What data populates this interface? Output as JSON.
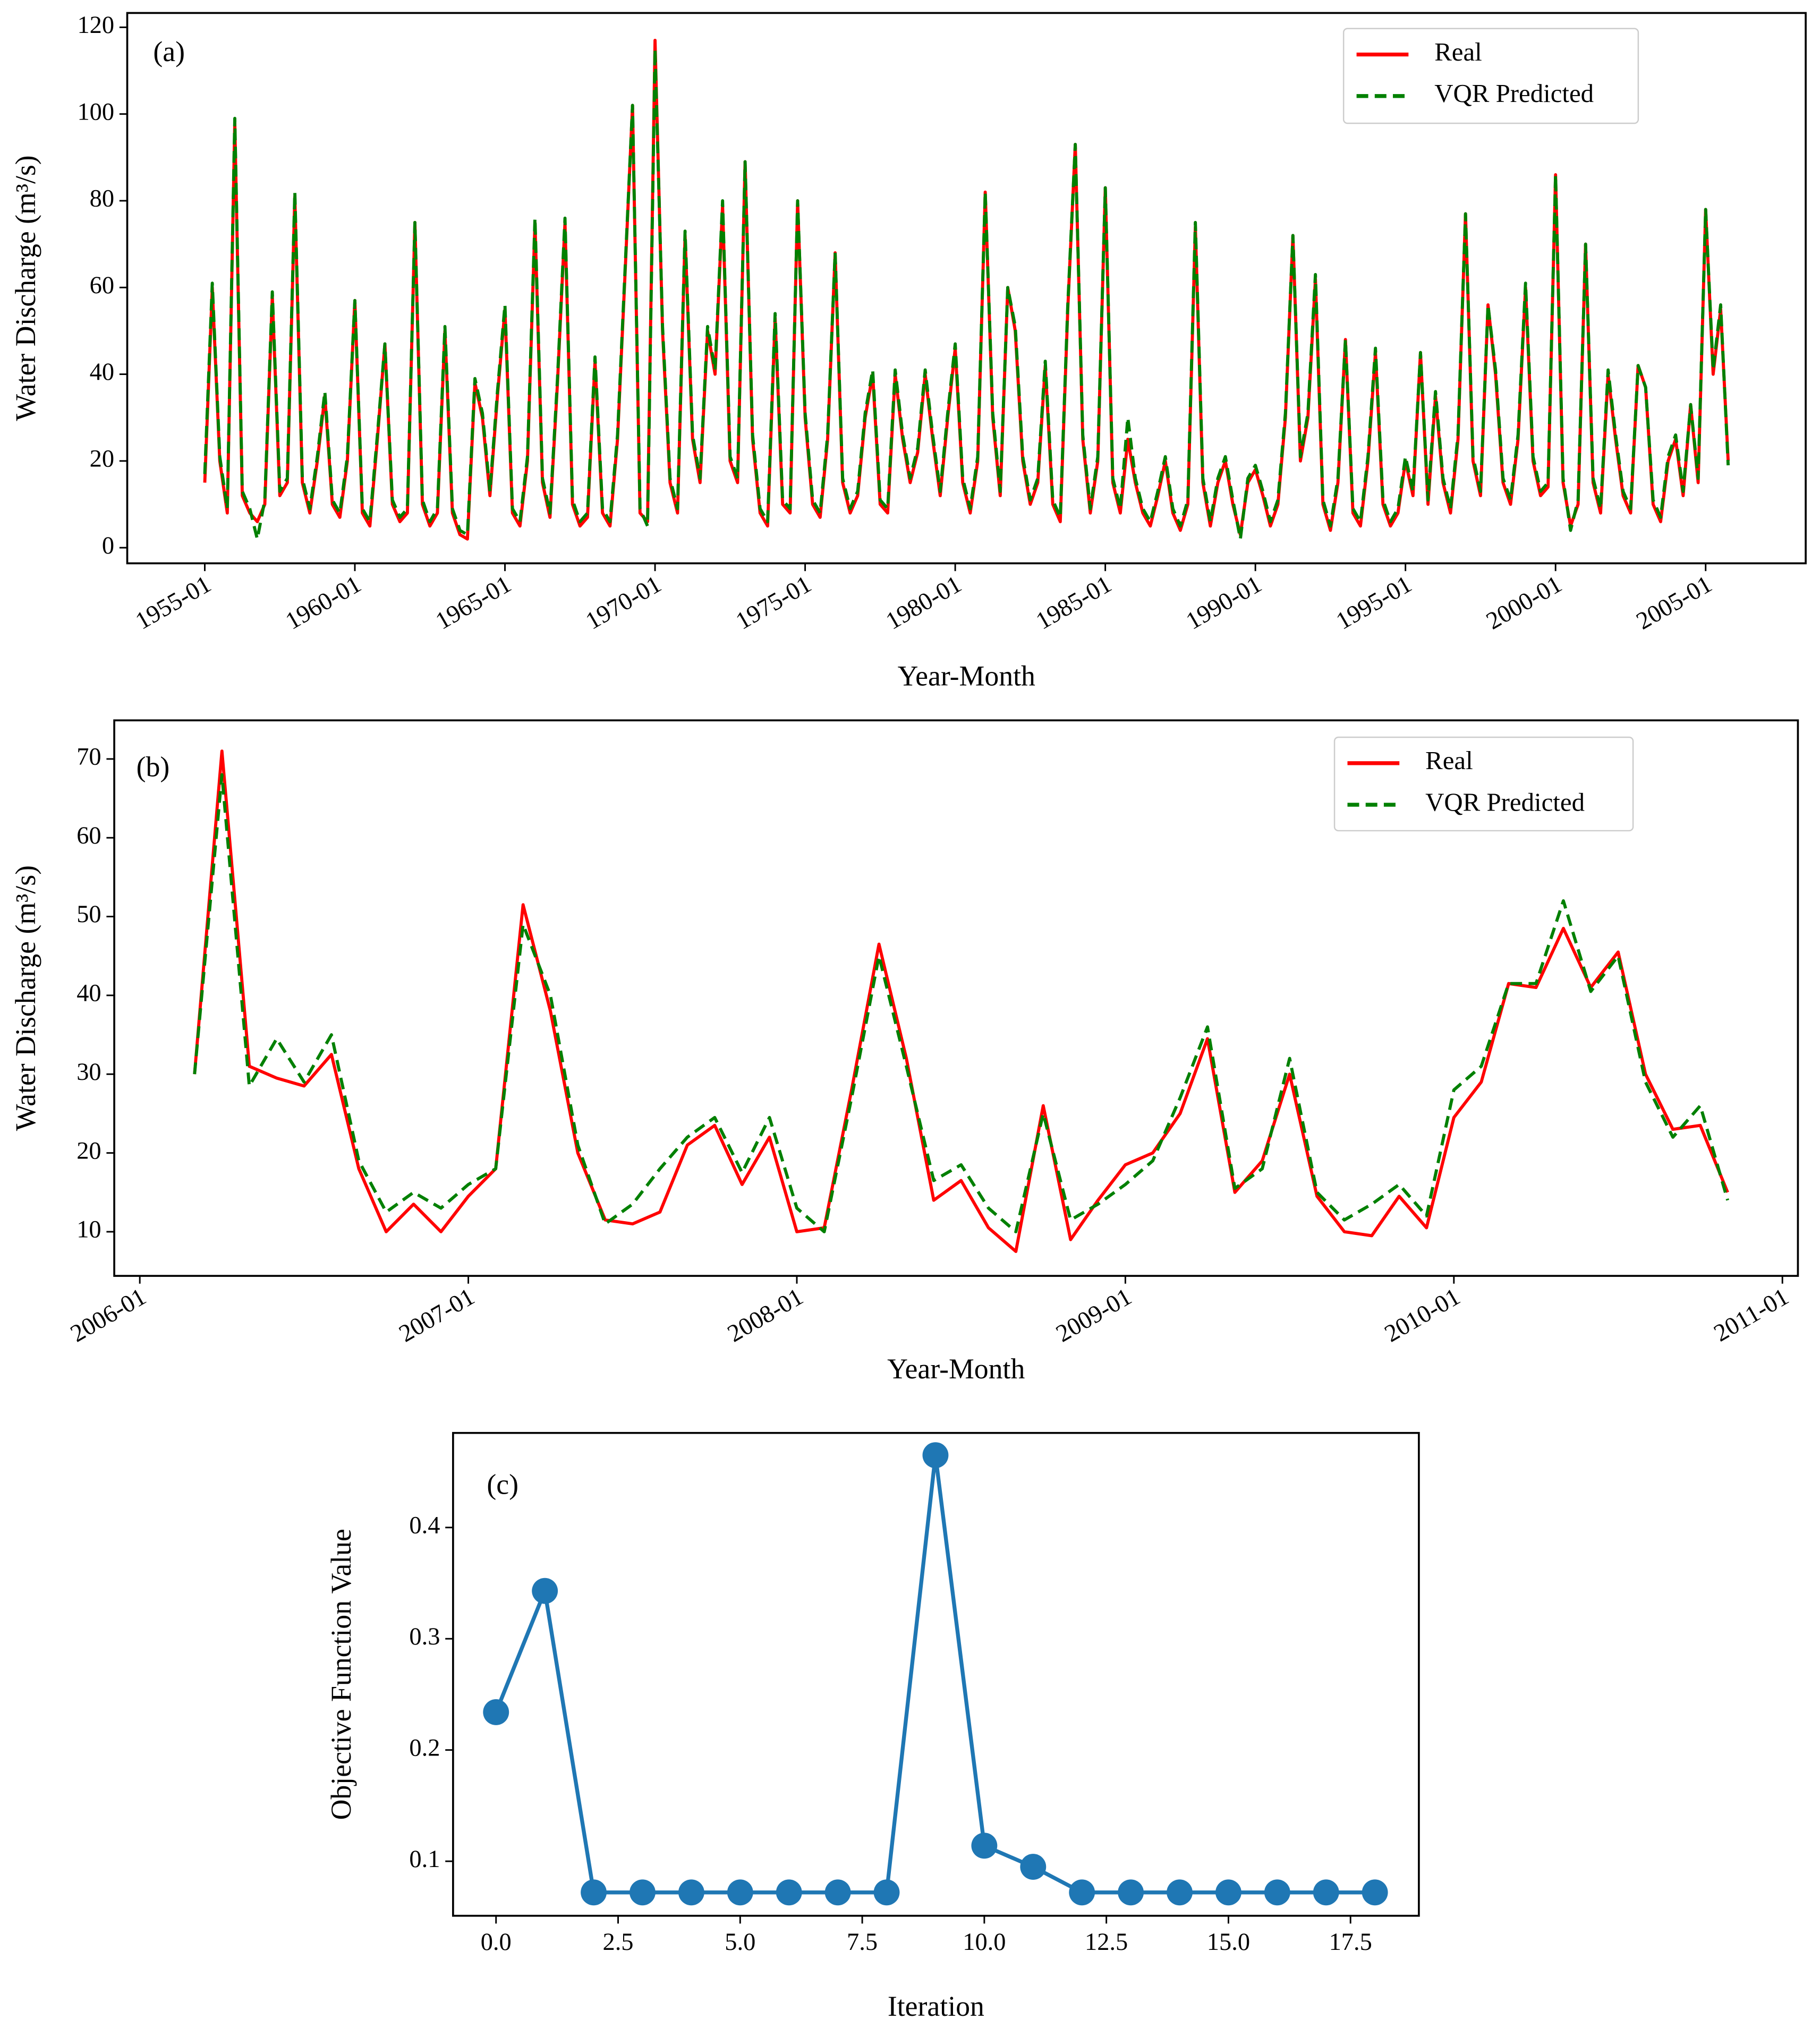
{
  "chart_data": [
    {
      "type": "line",
      "annotation": "(a)",
      "xlabel": "Year-Month",
      "ylabel": "Water Discharge (m³/s)",
      "legend": "upper right",
      "x": [
        "1955-01",
        "1955-04",
        "1955-07",
        "1955-10",
        "1956-01",
        "1956-04",
        "1956-07",
        "1956-10",
        "1957-01",
        "1957-04",
        "1957-07",
        "1957-10",
        "1958-01",
        "1958-04",
        "1958-07",
        "1958-10",
        "1959-01",
        "1959-04",
        "1959-07",
        "1959-10",
        "1960-01",
        "1960-04",
        "1960-07",
        "1960-10",
        "1961-01",
        "1961-04",
        "1961-07",
        "1961-10",
        "1962-01",
        "1962-04",
        "1962-07",
        "1962-10",
        "1963-01",
        "1963-04",
        "1963-07",
        "1963-10",
        "1964-01",
        "1964-04",
        "1964-07",
        "1964-10",
        "1965-01",
        "1965-04",
        "1965-07",
        "1965-10",
        "1966-01",
        "1966-04",
        "1966-07",
        "1966-10",
        "1967-01",
        "1967-04",
        "1967-07",
        "1967-10",
        "1968-01",
        "1968-04",
        "1968-07",
        "1968-10",
        "1969-01",
        "1969-04",
        "1969-07",
        "1969-10",
        "1970-01",
        "1970-04",
        "1970-07",
        "1970-10",
        "1971-01",
        "1971-04",
        "1971-07",
        "1971-10",
        "1972-01",
        "1972-04",
        "1972-07",
        "1972-10",
        "1973-01",
        "1973-04",
        "1973-07",
        "1973-10",
        "1974-01",
        "1974-04",
        "1974-07",
        "1974-10",
        "1975-01",
        "1975-04",
        "1975-07",
        "1975-10",
        "1976-01",
        "1976-04",
        "1976-07",
        "1976-10",
        "1977-01",
        "1977-04",
        "1977-07",
        "1977-10",
        "1978-01",
        "1978-04",
        "1978-07",
        "1978-10",
        "1979-01",
        "1979-04",
        "1979-07",
        "1979-10",
        "1980-01",
        "1980-04",
        "1980-07",
        "1980-10",
        "1981-01",
        "1981-04",
        "1981-07",
        "1981-10",
        "1982-01",
        "1982-04",
        "1982-07",
        "1982-10",
        "1983-01",
        "1983-04",
        "1983-07",
        "1983-10",
        "1984-01",
        "1984-04",
        "1984-07",
        "1984-10",
        "1985-01",
        "1985-04",
        "1985-07",
        "1985-10",
        "1986-01",
        "1986-04",
        "1986-07",
        "1986-10",
        "1987-01",
        "1987-04",
        "1987-07",
        "1987-10",
        "1988-01",
        "1988-04",
        "1988-07",
        "1988-10",
        "1989-01",
        "1989-04",
        "1989-07",
        "1989-10",
        "1990-01",
        "1990-04",
        "1990-07",
        "1990-10",
        "1991-01",
        "1991-04",
        "1991-07",
        "1991-10",
        "1992-01",
        "1992-04",
        "1992-07",
        "1992-10",
        "1993-01",
        "1993-04",
        "1993-07",
        "1993-10",
        "1994-01",
        "1994-04",
        "1994-07",
        "1994-10",
        "1995-01",
        "1995-04",
        "1995-07",
        "1995-10",
        "1996-01",
        "1996-04",
        "1996-07",
        "1996-10",
        "1997-01",
        "1997-04",
        "1997-07",
        "1997-10",
        "1998-01",
        "1998-04",
        "1998-07",
        "1998-10",
        "1999-01",
        "1999-04",
        "1999-07",
        "1999-10",
        "2000-01",
        "2000-04",
        "2000-07",
        "2000-10",
        "2001-01",
        "2001-04",
        "2001-07",
        "2001-10",
        "2002-01",
        "2002-04",
        "2002-07",
        "2002-10",
        "2003-01",
        "2003-04",
        "2003-07",
        "2003-10",
        "2004-01",
        "2004-04",
        "2004-07",
        "2004-10",
        "2005-01",
        "2005-04",
        "2005-07",
        "2005-10"
      ],
      "series": [
        {
          "name": "Real",
          "color": "#ff0000",
          "dash": false,
          "values": [
            15,
            60,
            20,
            8,
            98,
            12,
            8,
            6,
            10,
            58,
            12,
            15,
            81,
            15,
            8,
            20,
            35,
            10,
            7,
            20,
            57,
            8,
            5,
            25,
            47,
            10,
            6,
            8,
            75,
            10,
            5,
            8,
            50,
            8,
            3,
            2,
            38,
            30,
            12,
            35,
            55,
            8,
            5,
            20,
            75,
            15,
            7,
            38,
            75,
            10,
            5,
            7,
            43,
            8,
            5,
            25,
            63,
            102,
            8,
            6,
            117,
            50,
            15,
            8,
            72,
            25,
            15,
            50,
            40,
            79,
            20,
            15,
            89,
            25,
            8,
            5,
            53,
            10,
            8,
            80,
            30,
            10,
            7,
            25,
            68,
            15,
            8,
            12,
            30,
            40,
            10,
            8,
            40,
            25,
            15,
            22,
            40,
            25,
            12,
            30,
            46,
            15,
            8,
            20,
            82,
            30,
            12,
            60,
            50,
            20,
            10,
            15,
            42,
            10,
            6,
            55,
            93,
            25,
            8,
            20,
            83,
            15,
            8,
            25,
            15,
            8,
            5,
            12,
            20,
            8,
            4,
            10,
            74,
            15,
            5,
            15,
            20,
            10,
            3,
            15,
            18,
            12,
            5,
            10,
            30,
            72,
            20,
            30,
            62,
            10,
            4,
            15,
            48,
            8,
            5,
            20,
            45,
            10,
            5,
            8,
            20,
            12,
            45,
            10,
            35,
            15,
            8,
            25,
            77,
            20,
            12,
            56,
            40,
            15,
            10,
            25,
            60,
            20,
            12,
            14,
            86,
            15,
            5,
            10,
            70,
            15,
            8,
            40,
            25,
            12,
            8,
            42,
            37,
            10,
            6,
            20,
            25,
            12,
            33,
            15,
            78,
            40,
            55,
            20
          ]
        },
        {
          "name": "VQR Predicted",
          "color": "#008000",
          "dash": true,
          "values": [
            17,
            61,
            21,
            9,
            99,
            13,
            9,
            2,
            11,
            59,
            13,
            16,
            82,
            16,
            9,
            21,
            36,
            11,
            8,
            21,
            57,
            9,
            6,
            26,
            47,
            11,
            7,
            9,
            75,
            11,
            6,
            9,
            51,
            9,
            4,
            3,
            39,
            31,
            13,
            36,
            56,
            9,
            6,
            21,
            76,
            16,
            8,
            39,
            76,
            11,
            6,
            8,
            44,
            9,
            6,
            26,
            64,
            102,
            9,
            5,
            115,
            51,
            16,
            9,
            73,
            26,
            16,
            51,
            41,
            80,
            21,
            16,
            89,
            26,
            9,
            6,
            54,
            11,
            9,
            80,
            31,
            11,
            8,
            26,
            68,
            16,
            9,
            13,
            31,
            41,
            11,
            9,
            41,
            26,
            16,
            23,
            41,
            26,
            13,
            31,
            47,
            16,
            9,
            21,
            82,
            31,
            13,
            60,
            51,
            21,
            11,
            16,
            43,
            11,
            7,
            56,
            93,
            26,
            9,
            21,
            83,
            16,
            9,
            30,
            16,
            9,
            6,
            13,
            21,
            9,
            5,
            11,
            75,
            16,
            6,
            16,
            21,
            11,
            2,
            16,
            19,
            13,
            6,
            11,
            31,
            72,
            21,
            31,
            63,
            11,
            5,
            16,
            48,
            9,
            6,
            21,
            46,
            11,
            6,
            9,
            21,
            13,
            45,
            11,
            36,
            16,
            9,
            26,
            77,
            21,
            13,
            56,
            41,
            16,
            11,
            26,
            61,
            21,
            13,
            15,
            86,
            16,
            4,
            11,
            70,
            16,
            9,
            41,
            26,
            13,
            9,
            42,
            37,
            11,
            7,
            21,
            26,
            13,
            33,
            16,
            78,
            41,
            56,
            19
          ]
        }
      ],
      "xlim": [
        "1952-06",
        "2008-05"
      ],
      "xticks": [
        "1955-01",
        "1960-01",
        "1965-01",
        "1970-01",
        "1975-01",
        "1980-01",
        "1985-01",
        "1990-01",
        "1995-01",
        "2000-01",
        "2005-01"
      ],
      "ylim": [
        -3.6,
        123.3
      ],
      "yticks": [
        0,
        20,
        40,
        60,
        80,
        100,
        120
      ]
    },
    {
      "type": "line",
      "annotation": "(b)",
      "xlabel": "Year-Month",
      "ylabel": "Water Discharge (m³/s)",
      "legend": "upper right",
      "x": [
        "2006-03",
        "2006-04",
        "2006-05",
        "2006-06",
        "2006-07",
        "2006-08",
        "2006-09",
        "2006-10",
        "2006-11",
        "2006-12",
        "2007-01",
        "2007-02",
        "2007-03",
        "2007-04",
        "2007-05",
        "2007-06",
        "2007-07",
        "2007-08",
        "2007-09",
        "2007-10",
        "2007-11",
        "2007-12",
        "2008-01",
        "2008-02",
        "2008-03",
        "2008-04",
        "2008-05",
        "2008-06",
        "2008-07",
        "2008-08",
        "2008-09",
        "2008-10",
        "2008-11",
        "2008-12",
        "2009-01",
        "2009-02",
        "2009-03",
        "2009-04",
        "2009-05",
        "2009-06",
        "2009-07",
        "2009-08",
        "2009-09",
        "2009-10",
        "2009-11",
        "2009-12",
        "2010-01",
        "2010-02",
        "2010-03",
        "2010-04",
        "2010-05",
        "2010-06",
        "2010-07",
        "2010-08",
        "2010-09",
        "2010-10",
        "2010-11"
      ],
      "series": [
        {
          "name": "Real",
          "color": "#ff0000",
          "dash": false,
          "values": [
            30,
            71,
            31,
            29.5,
            28.5,
            32.5,
            18,
            10,
            13.5,
            10,
            14.5,
            18,
            51.5,
            38,
            20,
            11.5,
            11,
            12.5,
            21,
            23.5,
            16,
            22,
            10,
            10.5,
            28,
            46.5,
            32,
            14,
            16.5,
            10.5,
            7.5,
            26,
            9,
            14,
            18.5,
            20,
            25,
            34.5,
            15,
            19,
            30,
            14.5,
            10,
            9.5,
            14.5,
            10.5,
            24.5,
            29,
            41.5,
            41,
            48.5,
            41,
            45.5,
            30,
            23,
            23.5,
            15
          ]
        },
        {
          "name": "VQR Predicted",
          "color": "#008000",
          "dash": true,
          "values": [
            30,
            68,
            28.5,
            34.5,
            29,
            35,
            19,
            12.5,
            15,
            13,
            16,
            18,
            49,
            40,
            21,
            11,
            13.5,
            18,
            22,
            24.5,
            17.5,
            24.5,
            13,
            10,
            27,
            45,
            31,
            16.5,
            18.5,
            13,
            10,
            25,
            11.5,
            13.5,
            16,
            19,
            27,
            36,
            15.5,
            18,
            32,
            15,
            11.5,
            13.5,
            16,
            12,
            28,
            31,
            41.5,
            41.5,
            52,
            40.5,
            45,
            29,
            22,
            26,
            14
          ]
        }
      ],
      "xlim": [
        "2005-12-03",
        "2011-01-18"
      ],
      "xticks": [
        "2006-01",
        "2007-01",
        "2008-01",
        "2009-01",
        "2010-01",
        "2011-01"
      ],
      "ylim": [
        4.4,
        74.9
      ],
      "yticks": [
        10,
        20,
        30,
        40,
        50,
        60,
        70
      ]
    },
    {
      "type": "line",
      "markers": true,
      "annotation": "(c)",
      "xlabel": "Iteration",
      "ylabel": "Objective Function Value",
      "x": [
        0,
        1,
        2,
        3,
        4,
        5,
        6,
        7,
        8,
        9,
        10,
        11,
        12,
        13,
        14,
        15,
        16,
        17,
        18
      ],
      "series": [
        {
          "color": "#1f77b4",
          "dash": false,
          "values": [
            0.234,
            0.343,
            0.072,
            0.072,
            0.072,
            0.072,
            0.072,
            0.072,
            0.072,
            0.465,
            0.114,
            0.095,
            0.072,
            0.072,
            0.072,
            0.072,
            0.072,
            0.072,
            0.072
          ]
        }
      ],
      "xlim": [
        -0.88,
        18.9
      ],
      "xticks": [
        {
          "value": 0,
          "label": "0.0"
        },
        {
          "value": 2.5,
          "label": "2.5"
        },
        {
          "value": 5,
          "label": "5.0"
        },
        {
          "value": 7.5,
          "label": "7.5"
        },
        {
          "value": 10,
          "label": "10.0"
        },
        {
          "value": 12.5,
          "label": "12.5"
        },
        {
          "value": 15,
          "label": "15.0"
        },
        {
          "value": 17.5,
          "label": "17.5"
        }
      ],
      "ylim": [
        0.051,
        0.485
      ],
      "yticks": [
        0.1,
        0.2,
        0.3,
        0.4
      ]
    }
  ]
}
